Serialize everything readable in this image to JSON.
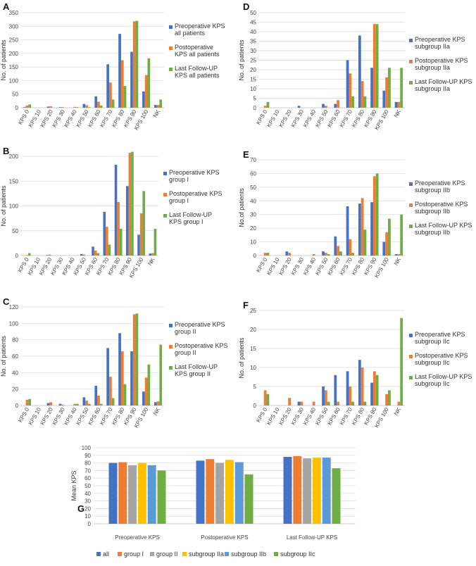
{
  "colors": {
    "pre": "#4472C4",
    "post": "#ED7D31",
    "last": "#70AD47",
    "g_all": "#4472C4",
    "g_group1": "#ED7D31",
    "g_group2": "#A5A5A5",
    "g_IIa": "#FFC000",
    "g_IIb": "#5B9BD5",
    "g_IIc": "#70AD47",
    "grid": "#D9D9D9",
    "axis": "#BFBFBF"
  },
  "chart_data": [
    {
      "panel": "A",
      "type": "bar",
      "categories": [
        "KPS 0",
        "KPS 10",
        "KPS 20",
        "KPS 30",
        "KPS 40",
        "KPS 50",
        "KPS 60",
        "KPS 70",
        "KPS 80",
        "KPS 90",
        "KPS 100",
        "NK"
      ],
      "ylabel": "No. of patients",
      "ylim": [
        0,
        350
      ],
      "yticks": [
        0,
        50,
        100,
        150,
        200,
        250,
        300,
        350
      ],
      "series": [
        {
          "key": "pre",
          "name": "Preoperative KPS all patients",
          "legend": [
            "Preoperative KPS",
            "all patients"
          ],
          "values": [
            2,
            0,
            4,
            2,
            0,
            14,
            42,
            160,
            272,
            206,
            60,
            10
          ]
        },
        {
          "key": "post",
          "name": "Postoperative KPS all patients",
          "legend": [
            "Postoperative",
            "KPS all patients"
          ],
          "values": [
            8,
            0,
            5,
            2,
            3,
            9,
            22,
            93,
            175,
            318,
            120,
            10
          ]
        },
        {
          "key": "last",
          "name": "Last Follow-UP KPS all patients",
          "legend": [
            "Last Follow-UP",
            "KPS all patients"
          ],
          "values": [
            12,
            0,
            0,
            0,
            2,
            2,
            8,
            30,
            80,
            320,
            182,
            30
          ]
        }
      ]
    },
    {
      "panel": "D",
      "type": "bar",
      "categories": [
        "KPS 0",
        "KPS 10",
        "KPS 20",
        "KPS 30",
        "KPS 40",
        "KPS 50",
        "KPS 60",
        "KPS 70",
        "KPS 80",
        "KPS 90",
        "KPS 100",
        "NK"
      ],
      "ylabel": "No. of patients",
      "ylim": [
        0,
        50
      ],
      "yticks": [
        0,
        5,
        10,
        15,
        20,
        25,
        30,
        35,
        40,
        45,
        50
      ],
      "series": [
        {
          "key": "pre",
          "name": "Preoperative KPS subgroup IIa",
          "legend": [
            "Preoperative KPS",
            "subgroup IIa"
          ],
          "values": [
            0,
            0,
            0,
            1,
            0,
            2,
            2,
            25,
            38,
            21,
            9,
            3
          ]
        },
        {
          "key": "post",
          "name": "Postoperative KPS subgroup IIa",
          "legend": [
            "Postoperative KPS",
            "subgroup IIa"
          ],
          "values": [
            1,
            0,
            0,
            0,
            0,
            1,
            4,
            18,
            14,
            44,
            16,
            3
          ]
        },
        {
          "key": "last",
          "name": "Last Follow-UP KPS subgroup IIa",
          "legend": [
            "Last Follow-UP KPS",
            "subgroup IIa"
          ],
          "values": [
            3,
            0,
            0,
            0,
            0,
            0,
            0,
            6,
            6,
            44,
            21,
            21
          ]
        }
      ]
    },
    {
      "panel": "B",
      "type": "bar",
      "categories": [
        "KPS 0",
        "KPS 10",
        "KPS 20",
        "KPS 30",
        "KPS 40",
        "KPS 50",
        "KPS 60",
        "KPS 70",
        "KPS 80",
        "KPS 90",
        "KPS 100",
        "NK"
      ],
      "ylabel": "No. of patients",
      "ylim": [
        0,
        200
      ],
      "yticks": [
        0,
        50,
        100,
        150,
        200
      ],
      "series": [
        {
          "key": "pre",
          "name": "Preoperative KPS group I",
          "legend": [
            "Preoperative KPS",
            "group I"
          ],
          "values": [
            0,
            0,
            1,
            0,
            0,
            3,
            18,
            88,
            183,
            140,
            42,
            4
          ]
        },
        {
          "key": "post",
          "name": "Postoperative KPS group I",
          "legend": [
            "Postoperative KPS",
            "group I"
          ],
          "values": [
            1,
            0,
            2,
            0,
            0,
            2,
            10,
            58,
            108,
            207,
            85,
            5
          ]
        },
        {
          "key": "last",
          "name": "Last Follow-UP KPS group I",
          "legend": [
            "Last Follow-UP",
            "KPS group I"
          ],
          "values": [
            5,
            0,
            0,
            0,
            0,
            0,
            5,
            22,
            54,
            209,
            130,
            54
          ]
        }
      ]
    },
    {
      "panel": "E",
      "type": "bar",
      "categories": [
        "KPS 0",
        "KPS 10",
        "KPS 20",
        "KPS 30",
        "KPS 40",
        "KPS 50",
        "KPS 60",
        "KPS 70",
        "KPS 80",
        "KPS 90",
        "KPS 100",
        "NK"
      ],
      "ylabel": "No.of patients",
      "ylim": [
        0,
        70
      ],
      "yticks": [
        0,
        10,
        20,
        30,
        40,
        50,
        60,
        70
      ],
      "series": [
        {
          "key": "pre",
          "name": "Preoperative KPS subgroup IIb",
          "legend": [
            "Preoperative KPS",
            "subgroup IIb"
          ],
          "values": [
            0,
            0,
            3,
            0,
            0,
            3,
            14,
            36,
            38,
            39,
            10,
            1
          ]
        },
        {
          "key": "post",
          "name": "Postoperative KPS subgroup IIb",
          "legend": [
            "Postoperative KPS",
            "subgroup IIb"
          ],
          "values": [
            2,
            0,
            2,
            0,
            1,
            2,
            7,
            12,
            42,
            58,
            17,
            1
          ]
        },
        {
          "key": "last",
          "name": "Last Follow-UP KPS subgroup IIb",
          "legend": [
            "Last Follow-UP KPS",
            "subgroup IIb"
          ],
          "values": [
            2,
            0,
            0,
            0,
            0,
            1,
            3,
            2,
            19,
            60,
            27,
            30
          ]
        }
      ]
    },
    {
      "panel": "C",
      "type": "bar",
      "categories": [
        "KPS 0",
        "KPS 10",
        "KPS 20",
        "KPS 30",
        "KPS 40",
        "KPS 50",
        "KPS 60",
        "KPS 70",
        "KPS 80",
        "KPS 90",
        "KPS 100",
        "NK"
      ],
      "ylabel": "No. of patients",
      "ylim": [
        0,
        120
      ],
      "yticks": [
        0,
        20,
        40,
        60,
        80,
        100,
        120
      ],
      "series": [
        {
          "key": "pre",
          "name": "Preoperative KPS group II",
          "legend": [
            "Preoperative KPS",
            "group II"
          ],
          "values": [
            0,
            0,
            3,
            2,
            0,
            10,
            24,
            70,
            88,
            66,
            17,
            4
          ]
        },
        {
          "key": "post",
          "name": "Postoperative KPS group II",
          "legend": [
            "Postoperative KPS",
            "group II"
          ],
          "values": [
            7,
            0,
            4,
            1,
            2,
            6,
            12,
            35,
            66,
            111,
            34,
            5
          ]
        },
        {
          "key": "last",
          "name": "Last Follow-UP KPS group II",
          "legend": [
            "Last Follow-UP",
            "KPS group II"
          ],
          "values": [
            8,
            0,
            0,
            0,
            2,
            2,
            2,
            9,
            26,
            112,
            50,
            74
          ]
        }
      ]
    },
    {
      "panel": "F",
      "type": "bar",
      "categories": [
        "KPS 0",
        "KPS 10",
        "KPS 20",
        "KPS 30",
        "KPS 40",
        "KPS 50",
        "KPS 60",
        "KPS 70",
        "KPS 80",
        "KPS 90",
        "KPS 100",
        "NK"
      ],
      "ylabel": "No. of patients",
      "ylim": [
        0,
        25
      ],
      "yticks": [
        0,
        5,
        10,
        15,
        20,
        25
      ],
      "series": [
        {
          "key": "pre",
          "name": "Preoperative KPS subgroup IIc",
          "legend": [
            "Preoperative KPS",
            "subgroup IIc"
          ],
          "values": [
            0,
            0,
            0,
            1,
            0,
            5,
            8,
            9,
            12,
            6,
            0,
            0
          ]
        },
        {
          "key": "post",
          "name": "Postoperative KPS subgroup IIc",
          "legend": [
            "Postoperative KPS",
            "subgroup IIc"
          ],
          "values": [
            4,
            0,
            2,
            1,
            1,
            4,
            1,
            5,
            10,
            9,
            3,
            1
          ]
        },
        {
          "key": "last",
          "name": "Last Follow-UP KPS subgroup IIc",
          "legend": [
            "Last Follow-UP KPS",
            "subgroup IIc"
          ],
          "values": [
            3,
            0,
            0,
            0,
            0,
            1,
            0,
            1,
            1,
            8,
            4,
            23
          ]
        }
      ]
    },
    {
      "panel": "G",
      "type": "bar",
      "categories": [
        "Preoperative KPS",
        "Postoperative KPS",
        "Last Follow-UP KPS"
      ],
      "ylabel": "Mean KPS",
      "ylim": [
        0,
        100
      ],
      "yticks": [
        0,
        10,
        20,
        30,
        40,
        50,
        60,
        70,
        80,
        90,
        100
      ],
      "legend_position": "bottom",
      "series": [
        {
          "key": "g_all",
          "name": "all",
          "values": [
            80,
            83,
            88
          ]
        },
        {
          "key": "g_group1",
          "name": "group I",
          "values": [
            81,
            85,
            89
          ]
        },
        {
          "key": "g_group2",
          "name": "group II",
          "values": [
            77,
            80,
            86
          ]
        },
        {
          "key": "g_IIa",
          "name": "subgroup IIa",
          "values": [
            80,
            84,
            87
          ]
        },
        {
          "key": "g_IIb",
          "name": "subgroup IIb",
          "values": [
            77,
            81,
            87
          ]
        },
        {
          "key": "g_IIc",
          "name": "subgroup IIc",
          "values": [
            70,
            65,
            73
          ]
        }
      ]
    }
  ]
}
